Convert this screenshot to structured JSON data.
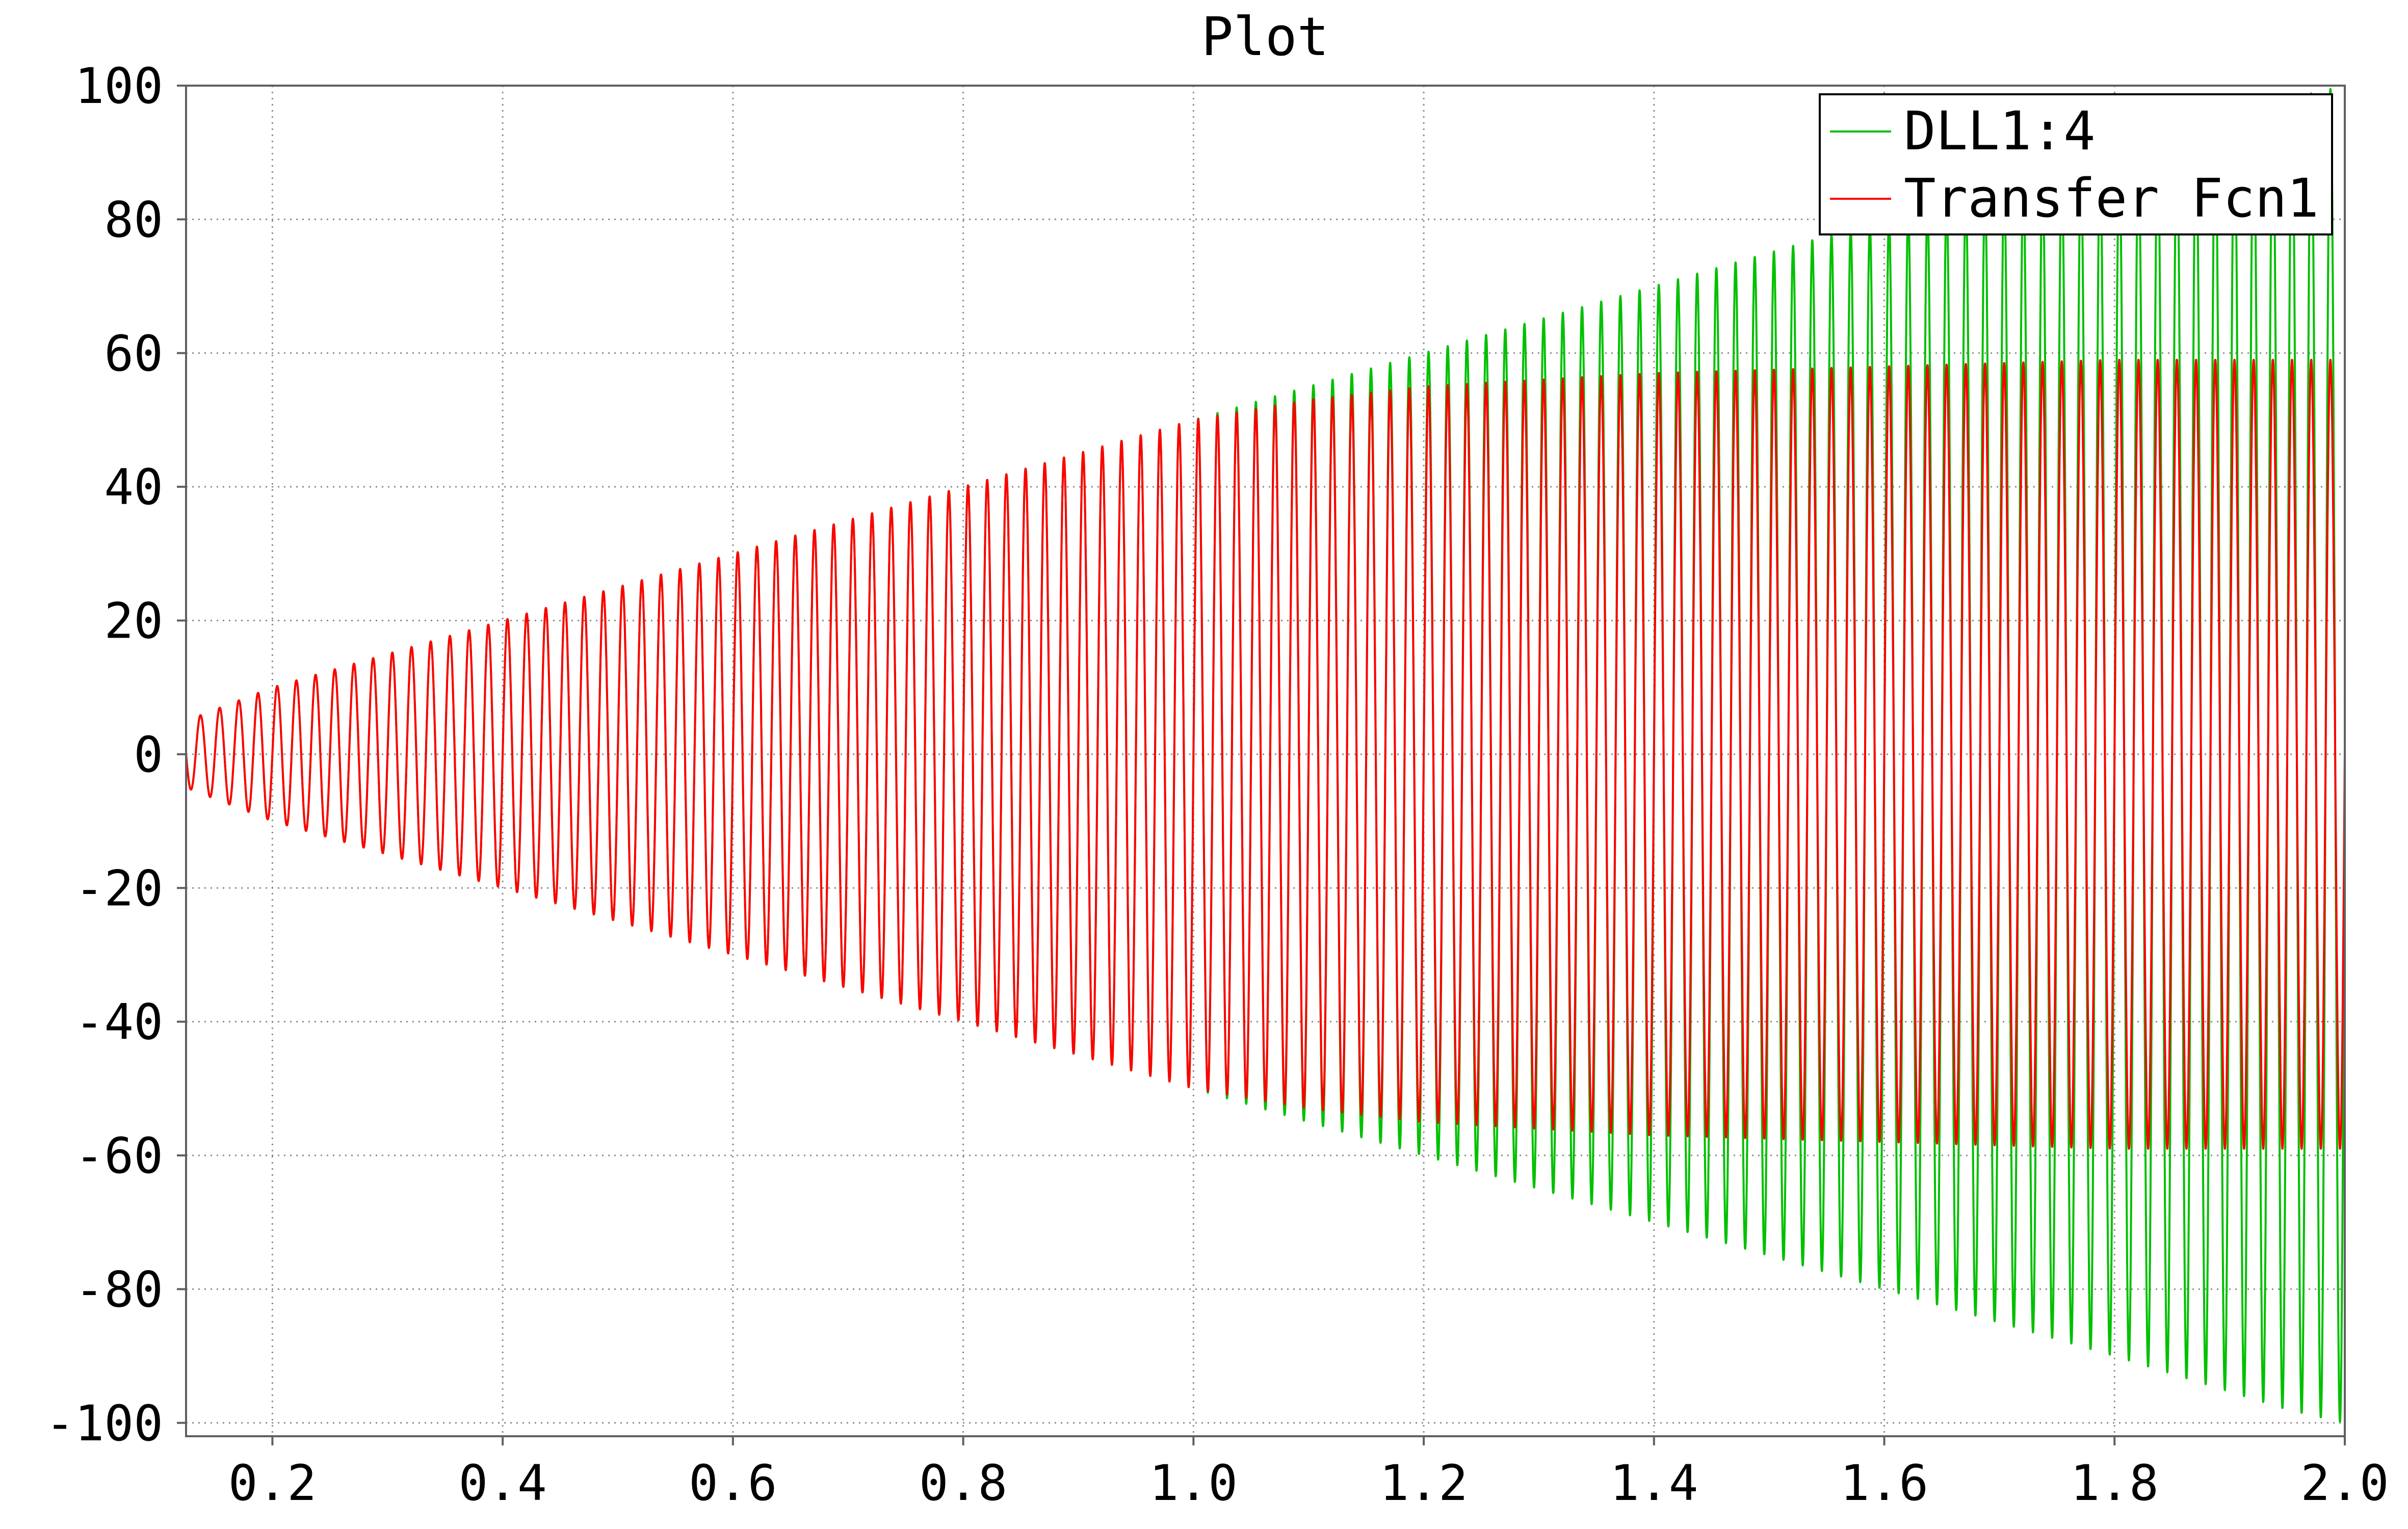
{
  "chart_data": {
    "type": "line",
    "title": "Plot",
    "xlabel": "",
    "ylabel": "",
    "xlim": [
      0.125,
      2.0
    ],
    "ylim": [
      -102,
      100
    ],
    "xticks": [
      0.2,
      0.4,
      0.6,
      0.8,
      1.0,
      1.2,
      1.4,
      1.6,
      1.8,
      2.0
    ],
    "xtick_labels": [
      "0.2",
      "0.4",
      "0.6",
      "0.8",
      "1.0",
      "1.2",
      "1.4",
      "1.6",
      "1.8",
      "2.0"
    ],
    "yticks": [
      100,
      80,
      60,
      40,
      20,
      0,
      -20,
      -40,
      -60,
      -80,
      -100
    ],
    "ytick_labels": [
      "100",
      "80",
      "60",
      "40",
      "20",
      "0",
      "-20",
      "-40",
      "-60",
      "-80",
      "-100"
    ],
    "grid": true,
    "legend_position": "top-right",
    "series": [
      {
        "name": "DLL1:4",
        "color": "#00c000",
        "oscillation_frequency_hz": 60,
        "envelope": {
          "x": [
            0.125,
            0.2,
            0.4,
            0.6,
            0.8,
            1.0,
            1.2,
            1.4,
            1.6,
            1.8,
            1.95,
            2.0
          ],
          "amplitude": [
            5,
            10,
            20,
            30,
            40,
            50,
            60,
            70,
            80,
            90,
            98,
            100
          ]
        }
      },
      {
        "name": "Transfer Fcn1",
        "color": "#ff0000",
        "oscillation_frequency_hz": 60,
        "envelope": {
          "x": [
            0.125,
            0.2,
            0.4,
            0.6,
            0.8,
            1.0,
            1.1,
            1.2,
            1.4,
            1.6,
            1.8,
            2.0
          ],
          "amplitude": [
            5,
            10,
            20,
            30,
            40,
            50,
            53,
            55,
            57,
            58,
            59,
            59
          ]
        }
      }
    ]
  }
}
